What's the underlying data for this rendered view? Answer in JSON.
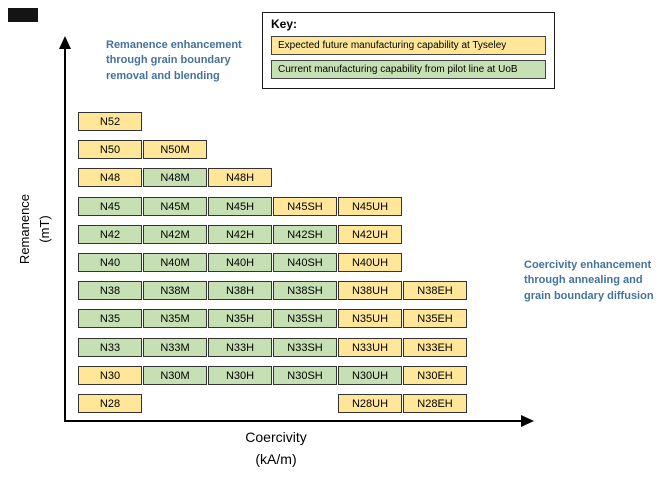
{
  "annotations": {
    "left": "Remanence enhancement through grain boundary removal and blending",
    "right": "Coercivity enhancement through annealing and grain boundary diffusion"
  },
  "key": {
    "title": "Key:"
  },
  "axis_display": {
    "y1": "Remanence",
    "y2": "(mT)",
    "x1": "Coercivity",
    "x2": "(kA/m)"
  },
  "chart_data": {
    "type": "heatmap",
    "xlabel": "Coercivity (kA/m)",
    "ylabel": "Remanence (mT)",
    "x_suffixes": [
      "",
      "M",
      "H",
      "SH",
      "UH",
      "EH"
    ],
    "legend_position": "top-right",
    "statuses": {
      "future": {
        "label": "Expected future manufacturing capability at Tyseley",
        "color": "#FFE699"
      },
      "current": {
        "label": "Current manufacturing capability from pilot line at UoB",
        "color": "#C6E0B4"
      }
    },
    "rows": [
      {
        "grade": "N52",
        "cells": [
          {
            "label": "N52",
            "col": 0,
            "status": "future"
          }
        ]
      },
      {
        "grade": "N50",
        "cells": [
          {
            "label": "N50",
            "col": 0,
            "status": "future"
          },
          {
            "label": "N50M",
            "col": 1,
            "status": "future"
          }
        ]
      },
      {
        "grade": "N48",
        "cells": [
          {
            "label": "N48",
            "col": 0,
            "status": "future"
          },
          {
            "label": "N48M",
            "col": 1,
            "status": "current"
          },
          {
            "label": "N48H",
            "col": 2,
            "status": "future"
          }
        ]
      },
      {
        "grade": "N45",
        "cells": [
          {
            "label": "N45",
            "col": 0,
            "status": "current"
          },
          {
            "label": "N45M",
            "col": 1,
            "status": "current"
          },
          {
            "label": "N45H",
            "col": 2,
            "status": "current"
          },
          {
            "label": "N45SH",
            "col": 3,
            "status": "future"
          },
          {
            "label": "N45UH",
            "col": 4,
            "status": "future"
          }
        ]
      },
      {
        "grade": "N42",
        "cells": [
          {
            "label": "N42",
            "col": 0,
            "status": "current"
          },
          {
            "label": "N42M",
            "col": 1,
            "status": "current"
          },
          {
            "label": "N42H",
            "col": 2,
            "status": "current"
          },
          {
            "label": "N42SH",
            "col": 3,
            "status": "current"
          },
          {
            "label": "N42UH",
            "col": 4,
            "status": "future"
          }
        ]
      },
      {
        "grade": "N40",
        "cells": [
          {
            "label": "N40",
            "col": 0,
            "status": "current"
          },
          {
            "label": "N40M",
            "col": 1,
            "status": "current"
          },
          {
            "label": "N40H",
            "col": 2,
            "status": "current"
          },
          {
            "label": "N40SH",
            "col": 3,
            "status": "current"
          },
          {
            "label": "N40UH",
            "col": 4,
            "status": "future"
          }
        ]
      },
      {
        "grade": "N38",
        "cells": [
          {
            "label": "N38",
            "col": 0,
            "status": "current"
          },
          {
            "label": "N38M",
            "col": 1,
            "status": "current"
          },
          {
            "label": "N38H",
            "col": 2,
            "status": "current"
          },
          {
            "label": "N38SH",
            "col": 3,
            "status": "current"
          },
          {
            "label": "N38UH",
            "col": 4,
            "status": "future"
          },
          {
            "label": "N38EH",
            "col": 5,
            "status": "future"
          }
        ]
      },
      {
        "grade": "N35",
        "cells": [
          {
            "label": "N35",
            "col": 0,
            "status": "current"
          },
          {
            "label": "N35M",
            "col": 1,
            "status": "current"
          },
          {
            "label": "N35H",
            "col": 2,
            "status": "current"
          },
          {
            "label": "N35SH",
            "col": 3,
            "status": "current"
          },
          {
            "label": "N35UH",
            "col": 4,
            "status": "future"
          },
          {
            "label": "N35EH",
            "col": 5,
            "status": "future"
          }
        ]
      },
      {
        "grade": "N33",
        "cells": [
          {
            "label": "N33",
            "col": 0,
            "status": "current"
          },
          {
            "label": "N33M",
            "col": 1,
            "status": "current"
          },
          {
            "label": "N33H",
            "col": 2,
            "status": "current"
          },
          {
            "label": "N33SH",
            "col": 3,
            "status": "current"
          },
          {
            "label": "N33UH",
            "col": 4,
            "status": "future"
          },
          {
            "label": "N33EH",
            "col": 5,
            "status": "future"
          }
        ]
      },
      {
        "grade": "N30",
        "cells": [
          {
            "label": "N30",
            "col": 0,
            "status": "future"
          },
          {
            "label": "N30M",
            "col": 1,
            "status": "current"
          },
          {
            "label": "N30H",
            "col": 2,
            "status": "current"
          },
          {
            "label": "N30SH",
            "col": 3,
            "status": "current"
          },
          {
            "label": "N30UH",
            "col": 4,
            "status": "current"
          },
          {
            "label": "N30EH",
            "col": 5,
            "status": "future"
          }
        ]
      },
      {
        "grade": "N28",
        "cells": [
          {
            "label": "N28",
            "col": 0,
            "status": "future"
          },
          {
            "label": "N28UH",
            "col": 4,
            "status": "future"
          },
          {
            "label": "N28EH",
            "col": 5,
            "status": "future"
          }
        ]
      }
    ]
  }
}
